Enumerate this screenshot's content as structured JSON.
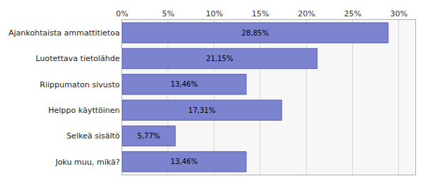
{
  "chart_data": {
    "type": "bar",
    "orientation": "horizontal",
    "categories": [
      "Ajankohtaista ammattitietoa",
      "Luotettava tietolähde",
      "Riippumaton sivusto",
      "Helppo käyttöinen",
      "Selkeä sisältö",
      "Joku muu, mikä?"
    ],
    "values": [
      28.85,
      21.15,
      13.46,
      17.31,
      5.77,
      13.46
    ],
    "value_labels": [
      "28,85%",
      "21,15%",
      "13,46%",
      "17,31%",
      "5,77%",
      "13,46%"
    ],
    "data_labels": true,
    "color": "#7c83cf",
    "xlim": [
      0,
      31.8
    ],
    "xticks": [
      {
        "value": 0,
        "label": "0%"
      },
      {
        "value": 5,
        "label": "5%"
      },
      {
        "value": 10,
        "label": "10%"
      },
      {
        "value": 15,
        "label": "15%"
      },
      {
        "value": 20,
        "label": "20%"
      },
      {
        "value": 25,
        "label": "25%"
      },
      {
        "value": 30,
        "label": "30%"
      }
    ],
    "grid": true
  }
}
